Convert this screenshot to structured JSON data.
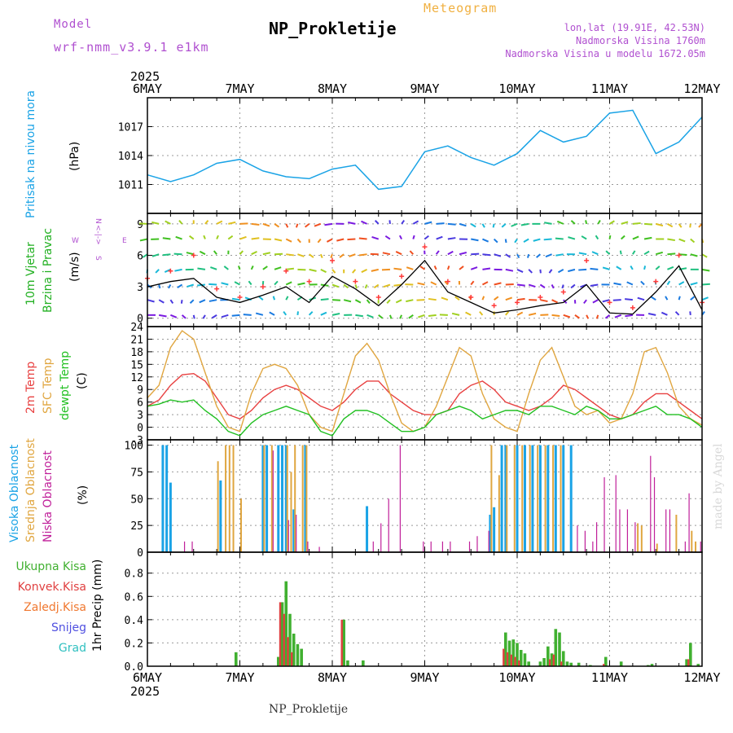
{
  "header": {
    "model_label": "Model",
    "model_value": "wrf-nmm_v3.9.1 e1km",
    "subtitle": "Meteogram",
    "title": "NP_Prokletije",
    "lonlat": "lon,lat (19.91E, 42.53N)",
    "elev_station": "Nadmorska Visina 1760m",
    "elev_model": "Nadmorska Visina u modelu 1672.05m"
  },
  "footer": {
    "label": "NP_Prokletije",
    "watermark": "made by Angel"
  },
  "axis": {
    "year": "2025",
    "day_labels": [
      "6MAY",
      "7MAY",
      "8MAY",
      "9MAY",
      "10MAY",
      "11MAY",
      "12MAY"
    ]
  },
  "colors": {
    "pressure": "#1aa3e6",
    "wind_speed": "#000000",
    "gust": "#ff3b3b",
    "temp2m": "#e84040",
    "sfc": "#e0a640",
    "dewpt": "#22c022",
    "high_cloud": "#1aa3e6",
    "mid_cloud": "#e0a640",
    "low_cloud": "#c0209a",
    "total_precip": "#40b030",
    "conv_precip": "#e04040",
    "frozen": "#f07830",
    "snow": "#5050e0",
    "graupel": "#30c0c0",
    "label_purple": "#b050d0",
    "title_orange": "#f0b040"
  },
  "panels": {
    "pressure": {
      "label": "Pritisak na nivou mora",
      "unit": "(hPa)"
    },
    "wind": {
      "label1": "10m Vjetar",
      "label2": "Brzina i Pravac",
      "unit": "(m/s)",
      "compass_n": "N",
      "compass_s": "S",
      "compass_w": "W",
      "compass_e": "E",
      "compass_art": "<-|->"
    },
    "temp": {
      "label1": "2m Temp",
      "label2": "SFC Temp",
      "label3": "dewpt Temp",
      "unit": "(C)"
    },
    "cloud": {
      "label1": "Visoka Oblacnost",
      "label2": "Srednja Oblacnost",
      "label3": "Niska Oblacnost",
      "unit": "(%)"
    },
    "precip": {
      "unit": "1hr Precip (mm)",
      "legend": [
        "Ukupna Kisa",
        "Konvek.Kisa",
        "Zaledj.Kisa",
        "Snijeg",
        "Grad"
      ]
    }
  },
  "chart_data": [
    {
      "type": "line",
      "name": "pressure",
      "x_unit": "hours since 2025-05-06 00 UTC",
      "ylim": [
        1008,
        1020
      ],
      "yticks": [
        1011,
        1014,
        1017
      ],
      "x": [
        0,
        6,
        12,
        18,
        24,
        30,
        36,
        42,
        48,
        54,
        60,
        66,
        72,
        78,
        84,
        90,
        96,
        102,
        108,
        114,
        120,
        126,
        132,
        138,
        144
      ],
      "y": [
        1012.0,
        1011.3,
        1012.0,
        1013.2,
        1013.6,
        1012.4,
        1011.8,
        1011.6,
        1012.6,
        1013.0,
        1010.5,
        1010.8,
        1014.4,
        1015.0,
        1013.8,
        1013.0,
        1014.2,
        1016.6,
        1015.4,
        1016.0,
        1018.4,
        1018.7,
        1014.2,
        1015.4,
        1018.0
      ]
    },
    {
      "type": "line",
      "name": "wind",
      "x_unit": "hours since 2025-05-06 00 UTC",
      "ylim": [
        -0.8,
        10
      ],
      "yticks": [
        0,
        3,
        6,
        9
      ],
      "wind_speed": {
        "x": [
          0,
          6,
          12,
          18,
          24,
          30,
          36,
          42,
          48,
          54,
          60,
          66,
          72,
          78,
          84,
          90,
          96,
          102,
          108,
          114,
          120,
          126,
          132,
          138,
          144
        ],
        "y": [
          3,
          3.5,
          3.8,
          2,
          1.5,
          2.2,
          3,
          1.5,
          4,
          2.8,
          1.2,
          3.2,
          5.5,
          2.5,
          1.5,
          0.5,
          0.8,
          1.2,
          1.5,
          3.2,
          0.5,
          0.4,
          2.5,
          5,
          0.8
        ]
      },
      "gust": {
        "x": [
          0,
          6,
          12,
          18,
          24,
          30,
          36,
          42,
          48,
          54,
          60,
          66,
          72,
          78,
          84,
          90,
          96,
          102,
          108,
          114,
          120,
          126,
          132,
          138,
          144
        ],
        "y": [
          3.8,
          4.5,
          6,
          2.8,
          2,
          3,
          4.5,
          3.5,
          5.5,
          3.5,
          2,
          4,
          6.8,
          3.5,
          2,
          1.2,
          1.5,
          2,
          2.5,
          5.5,
          1.5,
          1,
          3.5,
          6,
          1.5
        ]
      }
    },
    {
      "type": "line",
      "name": "temperature",
      "x_unit": "hours since 2025-05-06 00 UTC",
      "ylim": [
        -3,
        24
      ],
      "yticks": [
        -3,
        0,
        3,
        6,
        9,
        12,
        15,
        18,
        21,
        24
      ],
      "series": [
        {
          "name": "2m Temp",
          "x": [
            0,
            3,
            6,
            9,
            12,
            15,
            18,
            21,
            24,
            27,
            30,
            33,
            36,
            39,
            42,
            45,
            48,
            51,
            54,
            57,
            60,
            63,
            66,
            69,
            72,
            75,
            78,
            81,
            84,
            87,
            90,
            93,
            96,
            99,
            102,
            105,
            108,
            111,
            114,
            117,
            120,
            123,
            126,
            129,
            132,
            135,
            138,
            141,
            144
          ],
          "y": [
            5,
            6.5,
            10,
            12.5,
            12.8,
            11,
            7,
            3,
            2,
            4,
            7,
            9,
            10,
            9,
            7,
            5,
            4,
            6,
            9,
            11,
            11,
            8,
            6,
            4,
            3,
            3,
            4,
            8,
            10,
            11,
            9,
            6,
            5,
            4,
            5,
            7,
            10,
            9,
            7,
            5,
            3,
            2,
            3,
            6,
            8,
            8,
            6,
            4,
            2
          ]
        },
        {
          "name": "SFC Temp",
          "x": [
            0,
            3,
            6,
            9,
            12,
            15,
            18,
            21,
            24,
            27,
            30,
            33,
            36,
            39,
            42,
            45,
            48,
            51,
            54,
            57,
            60,
            63,
            66,
            69,
            72,
            75,
            78,
            81,
            84,
            87,
            90,
            93,
            96,
            99,
            102,
            105,
            108,
            111,
            114,
            117,
            120,
            123,
            126,
            129,
            132,
            135,
            138,
            141,
            144
          ],
          "y": [
            7,
            10,
            19,
            23,
            21,
            13,
            5,
            0,
            -1,
            8,
            14,
            15,
            14,
            10,
            3,
            0,
            -1,
            8,
            17,
            20,
            16,
            8,
            1,
            -1,
            0,
            5,
            12,
            19,
            17,
            8,
            2,
            0,
            -1,
            8,
            16,
            19,
            12,
            5,
            3,
            4,
            1,
            2,
            8,
            18,
            19,
            13,
            5,
            2,
            0.5
          ]
        },
        {
          "name": "dewpt Temp",
          "x": [
            0,
            3,
            6,
            9,
            12,
            15,
            18,
            21,
            24,
            27,
            30,
            33,
            36,
            39,
            42,
            45,
            48,
            51,
            54,
            57,
            60,
            63,
            66,
            69,
            72,
            75,
            78,
            81,
            84,
            87,
            90,
            93,
            96,
            99,
            102,
            105,
            108,
            111,
            114,
            117,
            120,
            123,
            126,
            129,
            132,
            135,
            138,
            141,
            144
          ],
          "y": [
            5,
            5.5,
            6.5,
            6,
            6.5,
            4,
            2,
            -1,
            -2,
            1,
            3,
            4,
            5,
            4,
            3,
            -1,
            -2,
            2,
            4,
            4,
            3,
            1,
            -1,
            -1,
            0,
            3,
            4,
            5,
            4,
            2,
            3,
            4,
            4,
            3,
            5,
            5,
            4,
            3,
            5,
            4,
            2,
            2,
            3,
            4,
            5,
            3,
            3,
            2,
            0
          ]
        }
      ]
    },
    {
      "type": "bar",
      "name": "cloud",
      "x_unit": "hours since 2025-05-06 00 UTC",
      "ylim": [
        0,
        105
      ],
      "yticks": [
        0,
        25,
        50,
        75,
        100
      ],
      "high": [
        [
          4,
          100
        ],
        [
          5,
          100
        ],
        [
          6,
          65
        ],
        [
          19,
          67
        ],
        [
          30,
          100
        ],
        [
          31,
          100
        ],
        [
          34,
          100
        ],
        [
          35,
          100
        ],
        [
          36,
          100
        ],
        [
          38,
          40
        ],
        [
          41,
          100
        ],
        [
          57,
          43
        ],
        [
          89,
          35
        ],
        [
          90,
          42
        ],
        [
          92,
          100
        ],
        [
          93,
          100
        ],
        [
          96,
          100
        ],
        [
          98,
          100
        ],
        [
          100,
          100
        ],
        [
          102,
          100
        ],
        [
          104,
          100
        ],
        [
          106,
          100
        ],
        [
          108,
          100
        ],
        [
          110,
          100
        ]
      ],
      "mid": [
        [
          18,
          85
        ],
        [
          20,
          100
        ],
        [
          21,
          100
        ],
        [
          22,
          100
        ],
        [
          24,
          50
        ],
        [
          30,
          100
        ],
        [
          32,
          100
        ],
        [
          36,
          100
        ],
        [
          37,
          75
        ],
        [
          38,
          100
        ],
        [
          40,
          100
        ],
        [
          41,
          100
        ],
        [
          89,
          100
        ],
        [
          91,
          72
        ],
        [
          93,
          100
        ],
        [
          95,
          100
        ],
        [
          97,
          100
        ],
        [
          99,
          100
        ],
        [
          101,
          100
        ],
        [
          103,
          100
        ],
        [
          105,
          100
        ],
        [
          107,
          100
        ],
        [
          127,
          27
        ],
        [
          128,
          25
        ],
        [
          132,
          8
        ],
        [
          137,
          35
        ],
        [
          141,
          20
        ],
        [
          142,
          10
        ]
      ],
      "low": [
        [
          9,
          10
        ],
        [
          11,
          10
        ],
        [
          32,
          95
        ],
        [
          36,
          30
        ],
        [
          38,
          35
        ],
        [
          41,
          10
        ],
        [
          44,
          5
        ],
        [
          58,
          10
        ],
        [
          60,
          27
        ],
        [
          62,
          50
        ],
        [
          65,
          100
        ],
        [
          71,
          10
        ],
        [
          73,
          10
        ],
        [
          76,
          10
        ],
        [
          78,
          10
        ],
        [
          83,
          10
        ],
        [
          85,
          15
        ],
        [
          88,
          20
        ],
        [
          111,
          25
        ],
        [
          113,
          20
        ],
        [
          115,
          10
        ],
        [
          116,
          28
        ],
        [
          118,
          70
        ],
        [
          121,
          72
        ],
        [
          122,
          40
        ],
        [
          124,
          40
        ],
        [
          126,
          28
        ],
        [
          130,
          90
        ],
        [
          131,
          70
        ],
        [
          134,
          40
        ],
        [
          135,
          40
        ],
        [
          139,
          10
        ],
        [
          140,
          55
        ],
        [
          143,
          10
        ]
      ]
    },
    {
      "type": "bar",
      "name": "precipitation",
      "x_unit": "hours since 2025-05-06 00 UTC",
      "ylim": [
        0,
        0.98
      ],
      "yticks": [
        0.0,
        0.2,
        0.4,
        0.6,
        0.8
      ],
      "total": [
        [
          23,
          0.12
        ],
        [
          34,
          0.08
        ],
        [
          35,
          0.55
        ],
        [
          36,
          0.73
        ],
        [
          37,
          0.45
        ],
        [
          38,
          0.28
        ],
        [
          39,
          0.19
        ],
        [
          40,
          0.15
        ],
        [
          51,
          0.4
        ],
        [
          52,
          0.05
        ],
        [
          56,
          0.05
        ],
        [
          93,
          0.29
        ],
        [
          94,
          0.22
        ],
        [
          95,
          0.23
        ],
        [
          96,
          0.2
        ],
        [
          97,
          0.14
        ],
        [
          98,
          0.11
        ],
        [
          99,
          0.04
        ],
        [
          102,
          0.04
        ],
        [
          103,
          0.07
        ],
        [
          104,
          0.17
        ],
        [
          105,
          0.11
        ],
        [
          106,
          0.32
        ],
        [
          107,
          0.29
        ],
        [
          108,
          0.13
        ],
        [
          109,
          0.04
        ],
        [
          110,
          0.03
        ],
        [
          112,
          0.03
        ],
        [
          115,
          0.01
        ],
        [
          119,
          0.08
        ],
        [
          123,
          0.04
        ],
        [
          130,
          0.01
        ],
        [
          131,
          0.02
        ],
        [
          140,
          0.06
        ],
        [
          141,
          0.2
        ],
        [
          143,
          0.02
        ]
      ],
      "convective": [
        [
          35,
          0.55
        ],
        [
          36,
          0.45
        ],
        [
          37,
          0.25
        ],
        [
          38,
          0.12
        ],
        [
          51,
          0.4
        ],
        [
          93,
          0.15
        ],
        [
          94,
          0.12
        ],
        [
          95,
          0.1
        ],
        [
          96,
          0.08
        ],
        [
          97,
          0.05
        ],
        [
          105,
          0.06
        ],
        [
          106,
          0.1
        ],
        [
          108,
          0.04
        ],
        [
          119,
          0.02
        ],
        [
          141,
          0.06
        ]
      ]
    }
  ]
}
